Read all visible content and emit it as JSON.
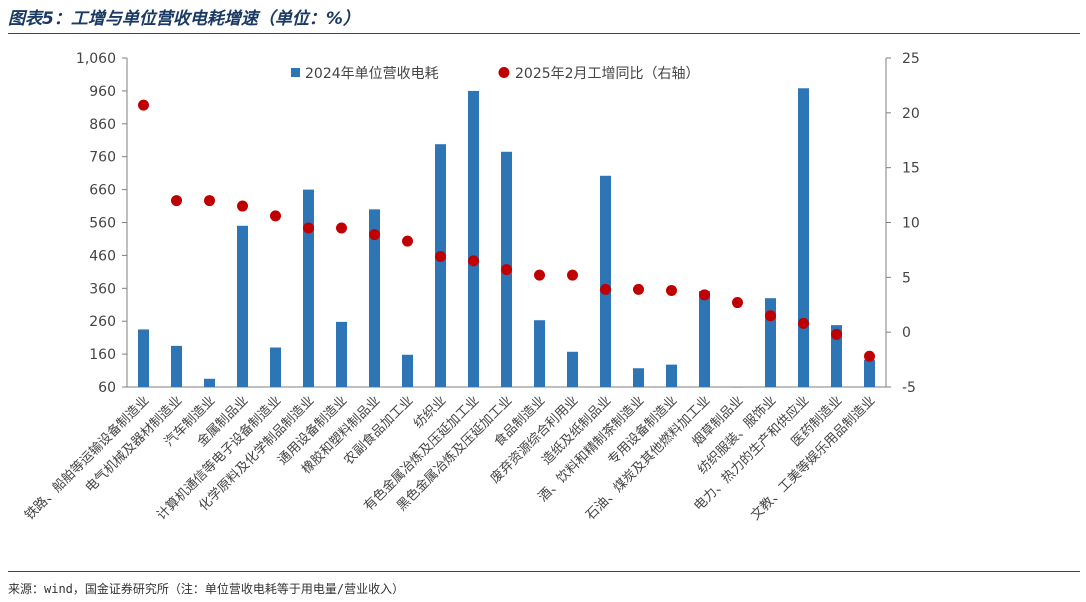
{
  "header": {
    "title": "图表5：工增与单位营收电耗增速（单位：%）"
  },
  "footer": {
    "source": "来源：wind，国金证券研究所（注：单位营收电耗等于用电量/营业收入）"
  },
  "colors": {
    "bar": "#2e75b6",
    "dot": "#c00000",
    "rule": "#1f4e79"
  },
  "chart_data": {
    "type": "bar",
    "categories": [
      "铁路、船舶等运输设备制造业",
      "电气机械及器材制造业",
      "汽车制造业",
      "金属制品业",
      "计算机通信等电子设备制造业",
      "化学原料及化学制品制造业",
      "通用设备制造业",
      "橡胶和塑料制品业",
      "农副食品加工业",
      "纺织业",
      "有色金属冶炼及压延加工业",
      "黑色金属冶炼及压延加工业",
      "食品制造业",
      "废弃资源综合利用业",
      "造纸及纸制品业",
      "酒、饮料和精制茶制造业",
      "专用设备制造业",
      "石油、煤炭及其他燃料加工业",
      "烟草制品业",
      "纺织服装、服饰业",
      "电力、热力的生产和供应业",
      "医药制造业",
      "文教、工美等娱乐用品制造业"
    ],
    "series": [
      {
        "name": "2024年单位营收电耗",
        "type": "bar",
        "axis": "left",
        "values": [
          235,
          185,
          85,
          550,
          180,
          660,
          258,
          600,
          158,
          798,
          960,
          775,
          263,
          167,
          702,
          117,
          128,
          352,
          60,
          330,
          968,
          248,
          143
        ]
      },
      {
        "name": "2025年2月工增同比（右轴）",
        "type": "scatter",
        "axis": "right",
        "values": [
          20.7,
          12.0,
          12.0,
          11.5,
          10.6,
          9.5,
          9.5,
          8.9,
          8.3,
          6.9,
          6.5,
          5.7,
          5.2,
          5.2,
          3.9,
          3.9,
          3.8,
          3.4,
          2.7,
          1.5,
          0.8,
          -0.2,
          -2.2
        ]
      }
    ],
    "ylim": [
      60,
      1060
    ],
    "yticks": [
      "60",
      "160",
      "260",
      "360",
      "460",
      "560",
      "660",
      "760",
      "860",
      "960",
      "1,060"
    ],
    "y2lim": [
      -5,
      25
    ],
    "y2ticks": [
      "-5",
      "0",
      "5",
      "10",
      "15",
      "20",
      "25"
    ],
    "legend": "top-center",
    "grid": false
  }
}
